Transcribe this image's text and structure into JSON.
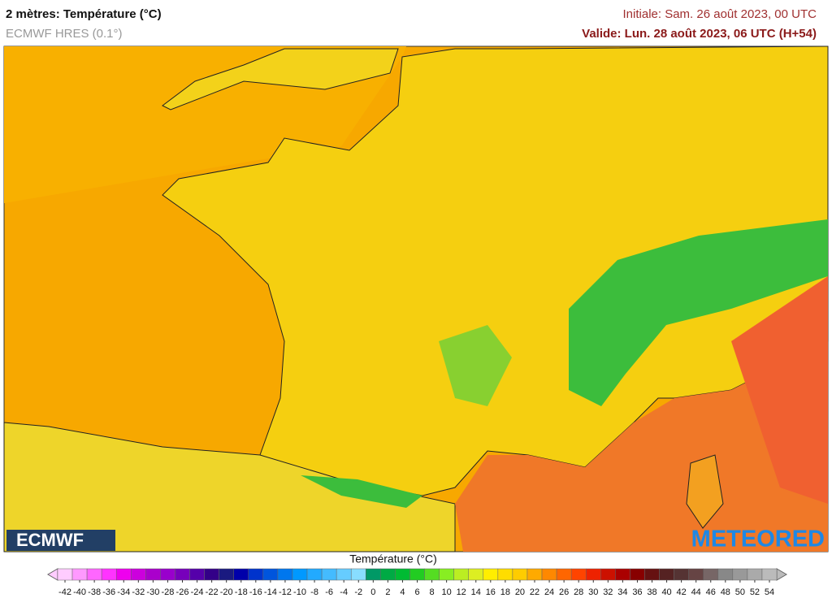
{
  "header": {
    "title": "2 mètres: Température (°C)",
    "model": "ECMWF HRES (0.1°)",
    "initial": "Initiale: Sam. 26 août 2023, 00 UTC",
    "valid": "Valide: Lun. 28 août 2023, 06 UTC (H+54)"
  },
  "logos": {
    "left": "ECMWF",
    "right": "METEORED"
  },
  "colorbar": {
    "title": "Température (°C)",
    "ticks": [
      -42,
      -40,
      -38,
      -36,
      -34,
      -32,
      -30,
      -28,
      -26,
      -24,
      -22,
      -20,
      -18,
      -16,
      -14,
      -12,
      -10,
      -8,
      -6,
      -4,
      -2,
      0,
      2,
      4,
      6,
      8,
      10,
      12,
      14,
      16,
      18,
      20,
      22,
      24,
      26,
      28,
      30,
      32,
      34,
      36,
      38,
      40,
      42,
      44,
      46,
      48,
      50,
      52,
      54
    ],
    "colors": [
      "#ffccff",
      "#ff99ff",
      "#ff66ff",
      "#ff33ff",
      "#ee00ee",
      "#cc00dd",
      "#aa00cc",
      "#9900cc",
      "#7700bb",
      "#5500aa",
      "#330088",
      "#1a1a80",
      "#0000aa",
      "#0033cc",
      "#0055dd",
      "#0077ee",
      "#0099ff",
      "#22aaff",
      "#44bbff",
      "#66ccff",
      "#88ddff",
      "#009966",
      "#00aa44",
      "#00bb33",
      "#22cc22",
      "#55dd22",
      "#88ee22",
      "#bbee22",
      "#ddee22",
      "#ffee00",
      "#ffdd00",
      "#ffcc00",
      "#ffaa00",
      "#ff8800",
      "#ff6600",
      "#ff4400",
      "#ee2200",
      "#cc1100",
      "#aa0000",
      "#880000",
      "#661111",
      "#552222",
      "#553333",
      "#664444",
      "#776666",
      "#888888",
      "#999999",
      "#aaaaaa",
      "#bbbbbb"
    ]
  }
}
